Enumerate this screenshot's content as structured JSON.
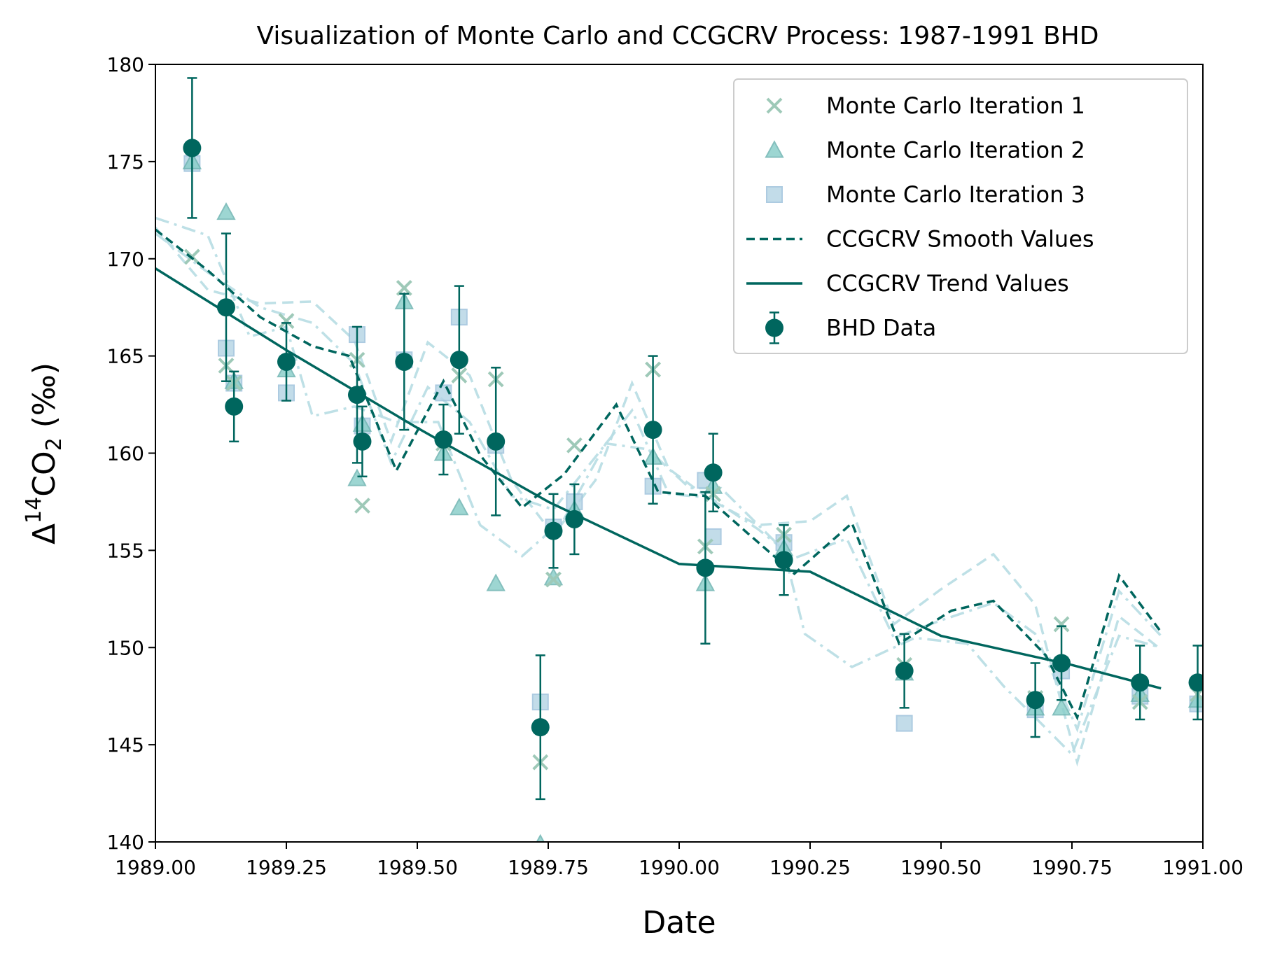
{
  "chart_data": {
    "type": "scatter",
    "title": "Visualization of Monte Carlo and CCGCRV Process: 1987-1991 BHD",
    "xlabel": "Date",
    "ylabel_main": "Δ",
    "ylabel_sup": "14",
    "ylabel_mid": "CO",
    "ylabel_sub": "2",
    "ylabel_tail": " (‰)",
    "xlim": [
      1989.0,
      1991.0
    ],
    "ylim": [
      140,
      180
    ],
    "x_ticks": [
      1989.0,
      1989.25,
      1989.5,
      1989.75,
      1990.0,
      1990.25,
      1990.5,
      1990.75,
      1991.0
    ],
    "x_tick_labels": [
      "1989.00",
      "1989.25",
      "1989.50",
      "1989.75",
      "1990.00",
      "1990.25",
      "1990.50",
      "1990.75",
      "1991.00"
    ],
    "y_ticks": [
      140,
      145,
      150,
      155,
      160,
      165,
      170,
      175,
      180
    ],
    "y_tick_labels": [
      "140",
      "145",
      "150",
      "155",
      "160",
      "165",
      "170",
      "175",
      "180"
    ],
    "legend_position": "top-right",
    "colors": {
      "dark_teal": "#00665e",
      "mc1": "#9ec9b8",
      "mc2": "#8ccfcb",
      "mc3": "#b8d6e6",
      "mc_line": "#b7dde3"
    },
    "legend": [
      {
        "label": "Monte Carlo Iteration 1",
        "marker": "x",
        "color": "#9ec9b8"
      },
      {
        "label": "Monte Carlo Iteration 2",
        "marker": "triangle",
        "color": "#8ccfcb"
      },
      {
        "label": "Monte Carlo Iteration 3",
        "marker": "square",
        "color": "#b8d6e6"
      },
      {
        "label": "CCGCRV Smooth Values",
        "marker": "dashed-line",
        "color": "#00665e"
      },
      {
        "label": "CCGCRV Trend Values",
        "marker": "solid-line",
        "color": "#00665e"
      },
      {
        "label": "BHD Data",
        "marker": "errorbar-circle",
        "color": "#00665e"
      }
    ],
    "bhd_data": [
      {
        "x": 1989.07,
        "y": 175.7,
        "err": 3.6
      },
      {
        "x": 1989.135,
        "y": 167.5,
        "err": 3.8
      },
      {
        "x": 1989.15,
        "y": 162.4,
        "err": 1.8
      },
      {
        "x": 1989.25,
        "y": 164.7,
        "err": 2.0
      },
      {
        "x": 1989.385,
        "y": 163.0,
        "err": 3.5
      },
      {
        "x": 1989.395,
        "y": 160.6,
        "err": 1.8
      },
      {
        "x": 1989.475,
        "y": 164.7,
        "err": 3.5
      },
      {
        "x": 1989.55,
        "y": 160.7,
        "err": 1.8
      },
      {
        "x": 1989.58,
        "y": 164.8,
        "err": 3.8
      },
      {
        "x": 1989.65,
        "y": 160.6,
        "err": 3.8
      },
      {
        "x": 1989.735,
        "y": 145.9,
        "err": 3.7
      },
      {
        "x": 1989.76,
        "y": 156.0,
        "err": 1.9
      },
      {
        "x": 1989.8,
        "y": 156.6,
        "err": 1.8
      },
      {
        "x": 1989.95,
        "y": 161.2,
        "err": 3.8
      },
      {
        "x": 1990.05,
        "y": 154.1,
        "err": 3.9
      },
      {
        "x": 1990.065,
        "y": 159.0,
        "err": 2.0
      },
      {
        "x": 1990.2,
        "y": 154.5,
        "err": 1.8
      },
      {
        "x": 1990.43,
        "y": 148.8,
        "err": 1.9
      },
      {
        "x": 1990.68,
        "y": 147.3,
        "err": 1.9
      },
      {
        "x": 1990.73,
        "y": 149.2,
        "err": 1.9
      },
      {
        "x": 1990.88,
        "y": 148.2,
        "err": 1.9
      },
      {
        "x": 1990.99,
        "y": 148.2,
        "err": 1.9
      }
    ],
    "mc_iteration_1": [
      {
        "x": 1989.07,
        "y": 170.1
      },
      {
        "x": 1989.135,
        "y": 164.5
      },
      {
        "x": 1989.15,
        "y": 163.6
      },
      {
        "x": 1989.25,
        "y": 166.8
      },
      {
        "x": 1989.385,
        "y": 164.8
      },
      {
        "x": 1989.395,
        "y": 157.3
      },
      {
        "x": 1989.475,
        "y": 168.5
      },
      {
        "x": 1989.55,
        "y": 160.5
      },
      {
        "x": 1989.58,
        "y": 164.0
      },
      {
        "x": 1989.65,
        "y": 163.8
      },
      {
        "x": 1989.735,
        "y": 144.1
      },
      {
        "x": 1989.76,
        "y": 153.5
      },
      {
        "x": 1989.8,
        "y": 160.4
      },
      {
        "x": 1989.95,
        "y": 164.3
      },
      {
        "x": 1990.05,
        "y": 155.2
      },
      {
        "x": 1990.065,
        "y": 157.9
      },
      {
        "x": 1990.2,
        "y": 155.8
      },
      {
        "x": 1990.43,
        "y": 149.1
      },
      {
        "x": 1990.68,
        "y": 147.4
      },
      {
        "x": 1990.73,
        "y": 151.2
      },
      {
        "x": 1990.88,
        "y": 147.2
      },
      {
        "x": 1990.99,
        "y": 147.6
      }
    ],
    "mc_iteration_2": [
      {
        "x": 1989.07,
        "y": 175.0
      },
      {
        "x": 1989.135,
        "y": 172.4
      },
      {
        "x": 1989.15,
        "y": 163.7
      },
      {
        "x": 1989.25,
        "y": 164.3
      },
      {
        "x": 1989.385,
        "y": 158.7
      },
      {
        "x": 1989.395,
        "y": 161.5
      },
      {
        "x": 1989.475,
        "y": 167.8
      },
      {
        "x": 1989.55,
        "y": 160.0
      },
      {
        "x": 1989.58,
        "y": 157.2
      },
      {
        "x": 1989.65,
        "y": 153.3
      },
      {
        "x": 1989.735,
        "y": 139.9
      },
      {
        "x": 1989.76,
        "y": 153.6
      },
      {
        "x": 1989.8,
        "y": 157.1
      },
      {
        "x": 1989.95,
        "y": 159.8
      },
      {
        "x": 1990.05,
        "y": 153.3
      },
      {
        "x": 1990.065,
        "y": 158.3
      },
      {
        "x": 1990.2,
        "y": 155.1
      },
      {
        "x": 1990.43,
        "y": 148.7
      },
      {
        "x": 1990.68,
        "y": 146.9
      },
      {
        "x": 1990.73,
        "y": 146.9
      },
      {
        "x": 1990.88,
        "y": 147.6
      },
      {
        "x": 1990.99,
        "y": 147.3
      }
    ],
    "mc_iteration_3": [
      {
        "x": 1989.07,
        "y": 174.9
      },
      {
        "x": 1989.135,
        "y": 165.4
      },
      {
        "x": 1989.15,
        "y": 163.6
      },
      {
        "x": 1989.25,
        "y": 163.1
      },
      {
        "x": 1989.385,
        "y": 166.1
      },
      {
        "x": 1989.395,
        "y": 161.4
      },
      {
        "x": 1989.475,
        "y": 164.8
      },
      {
        "x": 1989.55,
        "y": 163.1
      },
      {
        "x": 1989.58,
        "y": 167.0
      },
      {
        "x": 1989.65,
        "y": 160.4
      },
      {
        "x": 1989.735,
        "y": 147.2
      },
      {
        "x": 1989.76,
        "y": 156.2
      },
      {
        "x": 1989.8,
        "y": 157.5
      },
      {
        "x": 1989.95,
        "y": 158.3
      },
      {
        "x": 1990.05,
        "y": 158.6
      },
      {
        "x": 1990.065,
        "y": 155.7
      },
      {
        "x": 1990.2,
        "y": 155.4
      },
      {
        "x": 1990.43,
        "y": 146.1
      },
      {
        "x": 1990.68,
        "y": 146.8
      },
      {
        "x": 1990.73,
        "y": 148.8
      },
      {
        "x": 1990.88,
        "y": 147.5
      },
      {
        "x": 1990.99,
        "y": 147.1
      }
    ],
    "mc_lines": [
      {
        "style": "dashed",
        "points": [
          [
            1989.0,
            171.6
          ],
          [
            1989.1,
            168.4
          ],
          [
            1989.2,
            167.7
          ],
          [
            1989.3,
            167.8
          ],
          [
            1989.38,
            165.8
          ],
          [
            1989.45,
            160.6
          ],
          [
            1989.52,
            165.7
          ],
          [
            1989.6,
            164.0
          ],
          [
            1989.68,
            158.6
          ],
          [
            1989.76,
            155.8
          ],
          [
            1989.84,
            158.6
          ],
          [
            1989.91,
            163.6
          ],
          [
            1989.98,
            159.2
          ],
          [
            1990.06,
            157.6
          ],
          [
            1990.15,
            156.3
          ],
          [
            1990.25,
            156.5
          ],
          [
            1990.32,
            157.8
          ],
          [
            1990.41,
            151.2
          ],
          [
            1990.5,
            153.0
          ],
          [
            1990.6,
            154.8
          ],
          [
            1990.68,
            152.2
          ],
          [
            1990.76,
            144.1
          ],
          [
            1990.84,
            151.6
          ],
          [
            1990.92,
            149.9
          ]
        ]
      },
      {
        "style": "dashdot",
        "points": [
          [
            1989.0,
            171.3
          ],
          [
            1989.1,
            169.3
          ],
          [
            1989.2,
            167.5
          ],
          [
            1989.3,
            166.7
          ],
          [
            1989.38,
            164.6
          ],
          [
            1989.45,
            159.5
          ],
          [
            1989.52,
            163.4
          ],
          [
            1989.6,
            161.6
          ],
          [
            1989.68,
            157.8
          ],
          [
            1989.76,
            157.1
          ],
          [
            1989.84,
            159.8
          ],
          [
            1989.91,
            162.2
          ],
          [
            1989.98,
            157.9
          ],
          [
            1990.06,
            157.7
          ],
          [
            1990.15,
            156.1
          ],
          [
            1990.22,
            154.6
          ],
          [
            1990.32,
            155.6
          ],
          [
            1990.41,
            150.5
          ],
          [
            1990.5,
            151.4
          ],
          [
            1990.6,
            152.3
          ],
          [
            1990.68,
            150.7
          ],
          [
            1990.76,
            145.8
          ],
          [
            1990.84,
            152.9
          ],
          [
            1990.92,
            150.6
          ]
        ]
      },
      {
        "style": "dashdot",
        "points": [
          [
            1989.0,
            172.1
          ],
          [
            1989.1,
            171.2
          ],
          [
            1989.18,
            166.0
          ],
          [
            1989.25,
            166.5
          ],
          [
            1989.3,
            161.9
          ],
          [
            1989.38,
            162.4
          ],
          [
            1989.46,
            161.6
          ],
          [
            1989.54,
            161.6
          ],
          [
            1989.62,
            156.3
          ],
          [
            1989.7,
            154.7
          ],
          [
            1989.78,
            156.6
          ],
          [
            1989.86,
            160.5
          ],
          [
            1989.94,
            160.2
          ],
          [
            1990.02,
            158.2
          ],
          [
            1990.08,
            158.2
          ],
          [
            1990.2,
            155.0
          ],
          [
            1990.24,
            150.7
          ],
          [
            1990.33,
            149.0
          ],
          [
            1990.45,
            150.5
          ],
          [
            1990.55,
            150.2
          ],
          [
            1990.62,
            148.0
          ],
          [
            1990.68,
            146.4
          ],
          [
            1990.75,
            144.5
          ],
          [
            1990.84,
            150.6
          ],
          [
            1990.92,
            150.0
          ]
        ]
      }
    ],
    "ccgcrv_smooth": [
      [
        1989.0,
        171.5
      ],
      [
        1989.1,
        169.4
      ],
      [
        1989.2,
        167.0
      ],
      [
        1989.3,
        165.5
      ],
      [
        1989.37,
        165.0
      ],
      [
        1989.46,
        159.1
      ],
      [
        1989.55,
        163.7
      ],
      [
        1989.62,
        159.9
      ],
      [
        1989.7,
        157.2
      ],
      [
        1989.78,
        158.9
      ],
      [
        1989.88,
        162.5
      ],
      [
        1989.96,
        158.0
      ],
      [
        1990.05,
        157.8
      ],
      [
        1990.13,
        155.9
      ],
      [
        1990.22,
        153.8
      ],
      [
        1990.33,
        156.4
      ],
      [
        1990.42,
        150.2
      ],
      [
        1990.52,
        151.9
      ],
      [
        1990.6,
        152.4
      ],
      [
        1990.7,
        149.6
      ],
      [
        1990.76,
        146.4
      ],
      [
        1990.84,
        153.7
      ],
      [
        1990.92,
        150.8
      ]
    ],
    "ccgcrv_trend": [
      [
        1989.0,
        169.5
      ],
      [
        1989.25,
        165.3
      ],
      [
        1989.5,
        161.3
      ],
      [
        1989.75,
        157.5
      ],
      [
        1990.0,
        154.3
      ],
      [
        1990.25,
        153.9
      ],
      [
        1990.5,
        150.6
      ],
      [
        1990.75,
        149.1
      ],
      [
        1990.92,
        147.9
      ]
    ]
  }
}
